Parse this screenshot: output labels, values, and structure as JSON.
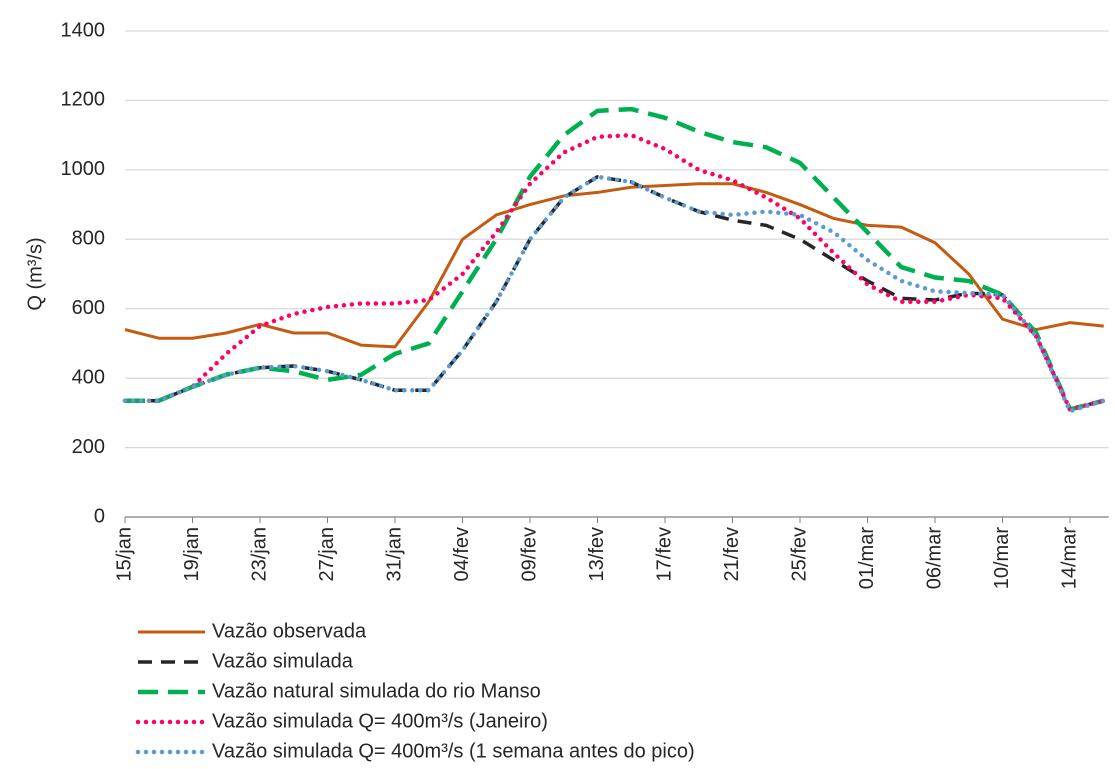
{
  "chart_data": {
    "type": "line",
    "y_label": "Q (m³/s)",
    "categories": [
      "15/jan",
      null,
      "19/jan",
      null,
      "23/jan",
      null,
      "27/jan",
      null,
      "31/jan",
      null,
      "04/fev",
      null,
      "09/fev",
      null,
      "13/fev",
      null,
      "17/fev",
      null,
      "21/fev",
      null,
      "25/fev",
      null,
      "01/mar",
      null,
      "06/mar",
      null,
      "10/mar",
      null,
      "14/mar",
      null
    ],
    "ylim": [
      0,
      1400
    ],
    "yticks": [
      0,
      200,
      400,
      600,
      800,
      1000,
      1200,
      1400
    ],
    "grid": true,
    "legend": "bottom",
    "series": [
      {
        "name": "Vazão observada",
        "color": "#c55a11",
        "dash": "solid",
        "values": [
          540,
          515,
          515,
          530,
          555,
          530,
          530,
          495,
          490,
          620,
          800,
          870,
          900,
          925,
          935,
          950,
          955,
          960,
          960,
          935,
          900,
          860,
          840,
          835,
          790,
          700,
          570,
          540,
          560,
          550
        ]
      },
      {
        "name": "Vazão simulada",
        "color": "#262626",
        "dash": "dashed",
        "values": [
          335,
          335,
          375,
          410,
          430,
          435,
          420,
          395,
          365,
          365,
          480,
          620,
          800,
          920,
          980,
          965,
          920,
          880,
          855,
          840,
          800,
          740,
          680,
          630,
          625,
          645,
          640,
          520,
          310,
          335
        ]
      },
      {
        "name": "Vazão natural simulada do rio Manso",
        "color": "#00b050",
        "dash": "longdash",
        "values": [
          335,
          335,
          375,
          410,
          430,
          420,
          395,
          410,
          470,
          500,
          650,
          800,
          980,
          1100,
          1170,
          1175,
          1150,
          1110,
          1080,
          1065,
          1020,
          920,
          820,
          720,
          690,
          680,
          640,
          530,
          310,
          335
        ]
      },
      {
        "name": "Vazão simulada Q= 400m³/s (Janeiro)",
        "color": "#ff0066",
        "dash": "dotted",
        "values": [
          335,
          335,
          375,
          470,
          550,
          585,
          605,
          615,
          615,
          625,
          700,
          820,
          960,
          1050,
          1095,
          1100,
          1060,
          1000,
          970,
          920,
          860,
          760,
          670,
          620,
          620,
          640,
          630,
          520,
          310,
          335
        ]
      },
      {
        "name": "Vazão simulada Q= 400m³/s (1 semana antes do pico)",
        "color": "#5b9bd5",
        "dash": "dotted",
        "values": [
          335,
          335,
          375,
          410,
          430,
          435,
          420,
          395,
          365,
          365,
          480,
          620,
          800,
          920,
          980,
          965,
          920,
          880,
          870,
          880,
          870,
          820,
          740,
          680,
          650,
          645,
          640,
          520,
          305,
          335
        ]
      }
    ]
  }
}
